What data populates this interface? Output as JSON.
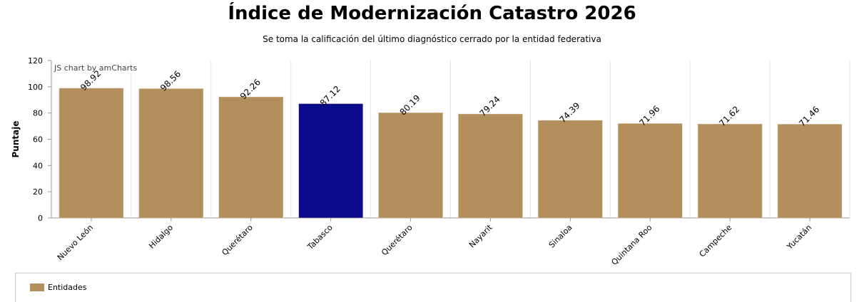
{
  "chart_data": {
    "type": "bar",
    "title": "Índice de Modernización Catastro 2026",
    "subtitle": "Se toma la calificación del último diagnóstico cerrado por la entidad federativa",
    "ylabel": "Puntaje",
    "xlabel": "",
    "ylim": [
      0,
      120
    ],
    "yticks": [
      0,
      20,
      40,
      60,
      80,
      100,
      120
    ],
    "categories": [
      "Nuevo León",
      "Hidalgo",
      "Querétaro",
      "Tabasco",
      "Querétaro",
      "Nayarit",
      "Sinaloa",
      "Quintana Roo",
      "Campeche",
      "Yucatán"
    ],
    "values": [
      98.92,
      98.56,
      92.26,
      87.12,
      80.19,
      79.24,
      74.39,
      71.96,
      71.62,
      71.46
    ],
    "labels": [
      "98.92",
      "98.56",
      "92.26",
      "87.12",
      "80.19",
      "79.24",
      "74.39",
      "71.96",
      "71.62",
      "71.46"
    ],
    "highlight_index": 3,
    "colors": {
      "default": "#b38f5e",
      "highlight": "#0a0a8a"
    },
    "legend": {
      "label": "Entidades",
      "placement": "bottom"
    },
    "credit": "JS chart by amCharts"
  }
}
